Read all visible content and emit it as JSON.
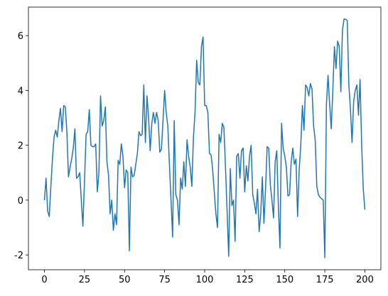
{
  "chart_data": {
    "type": "line",
    "x": [
      0,
      1,
      2,
      3,
      4,
      5,
      6,
      7,
      8,
      9,
      10,
      11,
      12,
      13,
      14,
      15,
      16,
      17,
      18,
      19,
      20,
      21,
      22,
      23,
      24,
      25,
      26,
      27,
      28,
      29,
      30,
      31,
      32,
      33,
      34,
      35,
      36,
      37,
      38,
      39,
      40,
      41,
      42,
      43,
      44,
      45,
      46,
      47,
      48,
      49,
      50,
      51,
      52,
      53,
      54,
      55,
      56,
      57,
      58,
      59,
      60,
      61,
      62,
      63,
      64,
      65,
      66,
      67,
      68,
      69,
      70,
      71,
      72,
      73,
      74,
      75,
      76,
      77,
      78,
      79,
      80,
      81,
      82,
      83,
      84,
      85,
      86,
      87,
      88,
      89,
      90,
      91,
      92,
      93,
      94,
      95,
      96,
      97,
      98,
      99,
      100,
      101,
      102,
      103,
      104,
      105,
      106,
      107,
      108,
      109,
      110,
      111,
      112,
      113,
      114,
      115,
      116,
      117,
      118,
      119,
      120,
      121,
      122,
      123,
      124,
      125,
      126,
      127,
      128,
      129,
      130,
      131,
      132,
      133,
      134,
      135,
      136,
      137,
      138,
      139,
      140,
      141,
      142,
      143,
      144,
      145,
      146,
      147,
      148,
      149,
      150,
      151,
      152,
      153,
      154,
      155,
      156,
      157,
      158,
      159,
      160,
      161,
      162,
      163,
      164,
      165,
      166,
      167,
      168,
      169,
      170,
      171,
      172,
      173,
      174,
      175,
      176,
      177,
      178,
      179,
      180,
      181,
      182,
      183,
      184,
      185,
      186,
      187,
      188,
      189,
      190,
      191,
      192,
      193,
      194,
      195,
      196,
      197,
      198,
      199,
      200
    ],
    "series": [
      {
        "color": "#1f77b4",
        "values": [
          0,
          0.8,
          -0.4,
          -0.6,
          0.5,
          1.5,
          2.3,
          2.55,
          2.3,
          2.9,
          3.35,
          2.5,
          3.45,
          3.4,
          2.5,
          0.85,
          1.2,
          1.5,
          1.9,
          2.6,
          0.8,
          0.85,
          1.0,
          0.0,
          -0.95,
          0.7,
          2.4,
          2.5,
          3.3,
          2.0,
          1.95,
          1.95,
          2.05,
          0.3,
          1.0,
          3.8,
          2.7,
          2.9,
          3.4,
          1.4,
          0.9,
          -0.5,
          0.0,
          -1.1,
          -0.5,
          -0.9,
          1.45,
          1.3,
          2.05,
          1.6,
          0.45,
          1.1,
          1.0,
          -1.85,
          1.2,
          0.85,
          0.9,
          1.3,
          1.7,
          2.5,
          2.35,
          2.4,
          4.2,
          2.1,
          3.8,
          3.0,
          1.8,
          2.8,
          3.2,
          2.8,
          3.2,
          2.9,
          1.75,
          1.85,
          2.9,
          4.0,
          3.2,
          2.7,
          1.3,
          0.0,
          -1.35,
          2.9,
          0.2,
          0.0,
          -0.9,
          0.8,
          0.4,
          1.4,
          0.5,
          2.2,
          1.6,
          1.2,
          0.5,
          2.3,
          3.2,
          5.1,
          4.3,
          4.2,
          5.6,
          5.95,
          3.45,
          3.45,
          3.2,
          1.7,
          1.65,
          1.1,
          0.3,
          -0.5,
          -1.0,
          2.4,
          2.1,
          2.8,
          2.65,
          1.2,
          -0.4,
          -2.05,
          1.15,
          -0.2,
          0.0,
          -1.5,
          1.6,
          1.7,
          0.8,
          1.8,
          1.9,
          0.3,
          1.25,
          0.7,
          1.6,
          2.0,
          0.2,
          -0.1,
          -0.5,
          0.4,
          -1.15,
          -0.5,
          0.85,
          -0.85,
          0.4,
          1.95,
          1.9,
          0.55,
          0.0,
          -0.65,
          1.4,
          1.8,
          -0.2,
          -1.75,
          2.8,
          1.9,
          1.6,
          1.2,
          0.15,
          0.2,
          1.4,
          1.9,
          1.3,
          1.5,
          -0.6,
          1.1,
          2.0,
          3.45,
          2.55,
          4.2,
          4.1,
          3.8,
          4.25,
          4.05,
          2.7,
          2.2,
          0.5,
          0.2,
          0.1,
          0.05,
          0.0,
          -2.1,
          3.5,
          4.55,
          3.5,
          2.6,
          4.0,
          5.6,
          4.8,
          5.8,
          5.6,
          3.95,
          6.2,
          6.6,
          6.6,
          6.55,
          4.2,
          3.3,
          2.1,
          3.6,
          4.0,
          4.2,
          3.1,
          4.4,
          2.0,
          0.4,
          -0.35
        ]
      }
    ],
    "xlim": [
      -10,
      210
    ],
    "xticks": [
      0,
      25,
      50,
      75,
      100,
      125,
      150,
      175,
      200
    ],
    "ylim": [
      -2.54,
      7.04
    ],
    "yticks": [
      -2,
      0,
      2,
      4,
      6
    ]
  }
}
